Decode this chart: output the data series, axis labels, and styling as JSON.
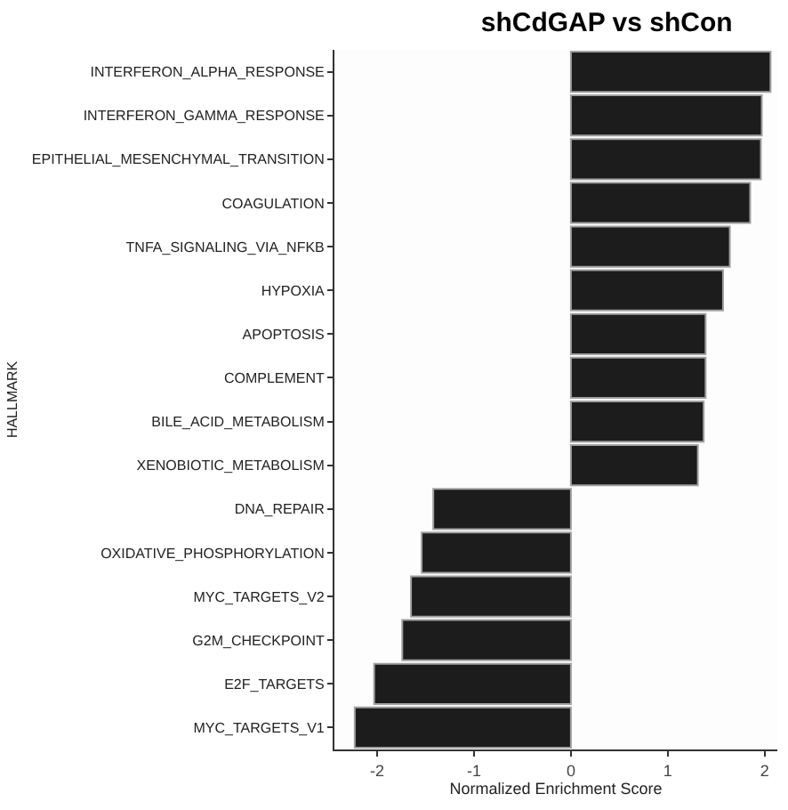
{
  "chart_data": {
    "type": "bar",
    "orientation": "horizontal",
    "title": "shCdGAP vs shCon",
    "xlabel": "Normalized Enrichment Score",
    "ylabel": "HALLMARK",
    "categories": [
      "INTERFERON_ALPHA_RESPONSE",
      "INTERFERON_GAMMA_RESPONSE",
      "EPITHELIAL_MESENCHYMAL_TRANSITION",
      "COAGULATION",
      "TNFA_SIGNALING_VIA_NFKB",
      "HYPOXIA",
      "APOPTOSIS",
      "COMPLEMENT",
      "BILE_ACID_METABOLISM",
      "XENOBIOTIC_METABOLISM",
      "DNA_REPAIR",
      "OXIDATIVE_PHOSPHORYLATION",
      "MYC_TARGETS_V2",
      "G2M_CHECKPOINT",
      "E2F_TARGETS",
      "MYC_TARGETS_V1"
    ],
    "values": [
      2.06,
      1.97,
      1.96,
      1.85,
      1.64,
      1.57,
      1.39,
      1.39,
      1.37,
      1.31,
      -1.42,
      -1.54,
      -1.65,
      -1.74,
      -2.03,
      -2.23
    ],
    "color": "#1c1c1c",
    "xlim": [
      -2.44,
      2.13
    ],
    "xticks": [
      -2,
      -1,
      0,
      1,
      2
    ]
  }
}
